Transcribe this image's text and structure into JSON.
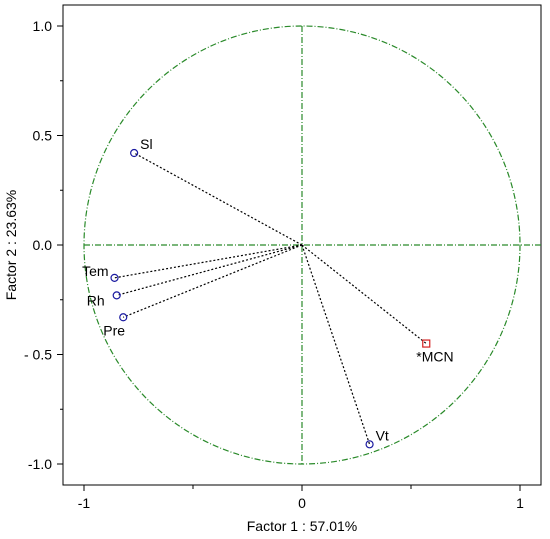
{
  "chart_data": {
    "type": "scatter",
    "subtype": "pca-correlation-circle",
    "title": "",
    "xlabel": "Factor 1 : 57.01%",
    "ylabel": "Factor 2 : 23.63%",
    "xlim": [
      -1.1,
      1.1
    ],
    "ylim": [
      -1.1,
      1.1
    ],
    "xticks": [
      -1,
      0,
      1
    ],
    "xtick_labels": [
      "-1",
      "0",
      "1"
    ],
    "yticks": [
      1.0,
      0.5,
      0.0,
      -0.5,
      -1.0
    ],
    "ytick_labels": [
      "1.0",
      "0.5",
      "0.0",
      "- 0.5",
      "-1.0"
    ],
    "grid": false,
    "unit_circle": true,
    "points": [
      {
        "label": "Sl",
        "x": -0.77,
        "y": 0.42,
        "marker": "circle",
        "color": "#1a1aa0"
      },
      {
        "label": "Tem",
        "x": -0.86,
        "y": -0.15,
        "marker": "circle",
        "color": "#1a1aa0"
      },
      {
        "label": "Rh",
        "x": -0.85,
        "y": -0.23,
        "marker": "circle",
        "color": "#1a1aa0"
      },
      {
        "label": "Pre",
        "x": -0.82,
        "y": -0.33,
        "marker": "circle",
        "color": "#1a1aa0"
      },
      {
        "label": "Vt",
        "x": 0.31,
        "y": -0.91,
        "marker": "circle",
        "color": "#1a1aa0"
      },
      {
        "label": "*MCN",
        "x": 0.57,
        "y": -0.45,
        "marker": "square",
        "color": "#d42020"
      }
    ],
    "colors": {
      "circle": "#2a8a2a",
      "axes": "#2a8a2a",
      "vectors": "#000000"
    }
  }
}
